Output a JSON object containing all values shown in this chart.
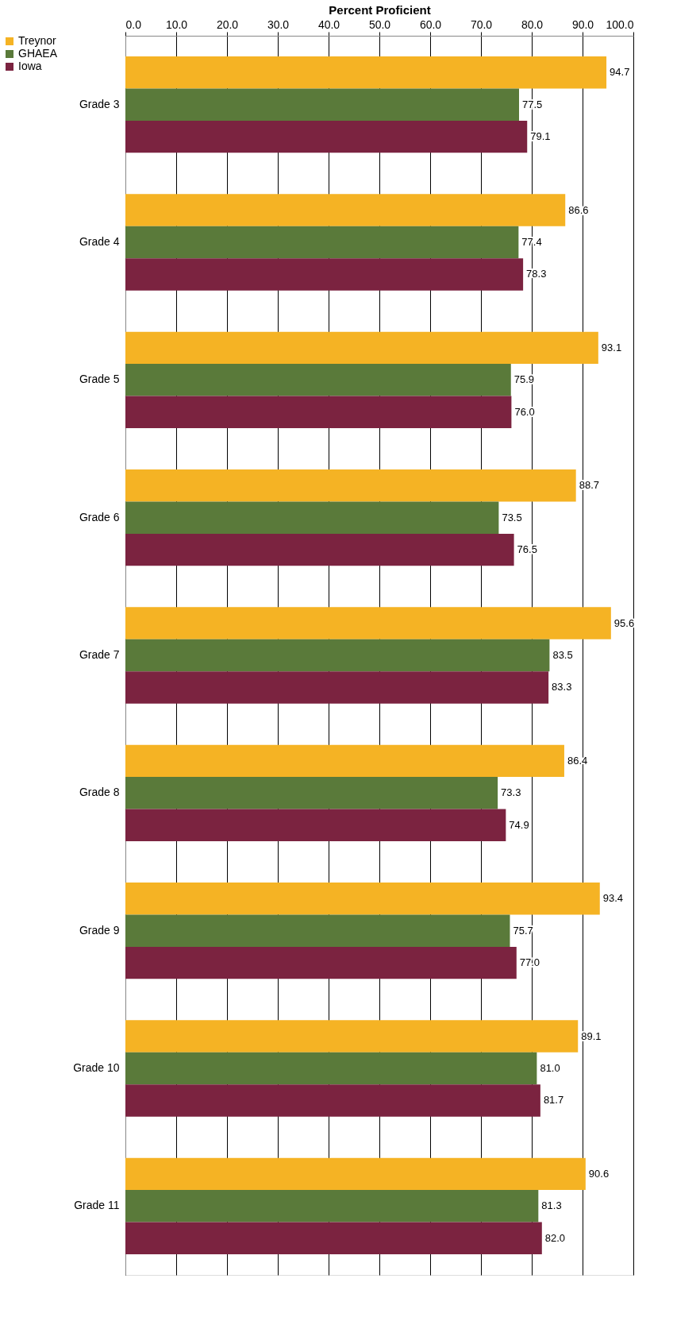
{
  "chart_data": {
    "type": "bar",
    "orientation": "horizontal",
    "xlabel": "Percent Proficient",
    "categories": [
      "Grade 3",
      "Grade 4",
      "Grade 5",
      "Grade 6",
      "Grade 7",
      "Grade 8",
      "Grade 9",
      "Grade 10",
      "Grade 11"
    ],
    "series": [
      {
        "name": "Treynor",
        "color": "#f5b324",
        "values": [
          94.7,
          86.6,
          93.1,
          88.7,
          95.6,
          86.4,
          93.4,
          89.1,
          90.6
        ],
        "value_labels": [
          "94.7",
          "86.6",
          "93.1",
          "88.7",
          "95.6",
          "86.4",
          "93.4",
          "89.1",
          "90.6"
        ]
      },
      {
        "name": "GHAEA",
        "color": "#5a7a3a",
        "values": [
          77.5,
          77.4,
          75.9,
          73.5,
          83.5,
          73.3,
          75.7,
          81.0,
          81.3
        ],
        "value_labels": [
          "77.5",
          "77.4",
          "75.9",
          "73.5",
          "83.5",
          "73.3",
          "75.7",
          "81.0",
          "81.3"
        ]
      },
      {
        "name": "Iowa",
        "color": "#7b2340",
        "values": [
          79.1,
          78.3,
          76.0,
          76.5,
          83.3,
          74.9,
          77.0,
          81.7,
          82.0
        ],
        "value_labels": [
          "79.1",
          "78.3",
          "76.0",
          "76.5",
          "83.3",
          "74.9",
          "77.0",
          "81.7",
          "82.0"
        ]
      }
    ],
    "xlim": [
      0,
      100
    ],
    "xticks": [
      {
        "value": 0,
        "label": "0.0"
      },
      {
        "value": 10,
        "label": "10.0"
      },
      {
        "value": 20,
        "label": "20.0"
      },
      {
        "value": 30,
        "label": "30.0"
      },
      {
        "value": 40,
        "label": "40.0"
      },
      {
        "value": 50,
        "label": "50.0"
      },
      {
        "value": 60,
        "label": "60.0"
      },
      {
        "value": 70,
        "label": "70.0"
      },
      {
        "value": 80,
        "label": "80.0"
      },
      {
        "value": 90,
        "label": "90.0"
      },
      {
        "value": 100,
        "label": "100.0"
      }
    ],
    "grid": "x",
    "legend": "left"
  }
}
